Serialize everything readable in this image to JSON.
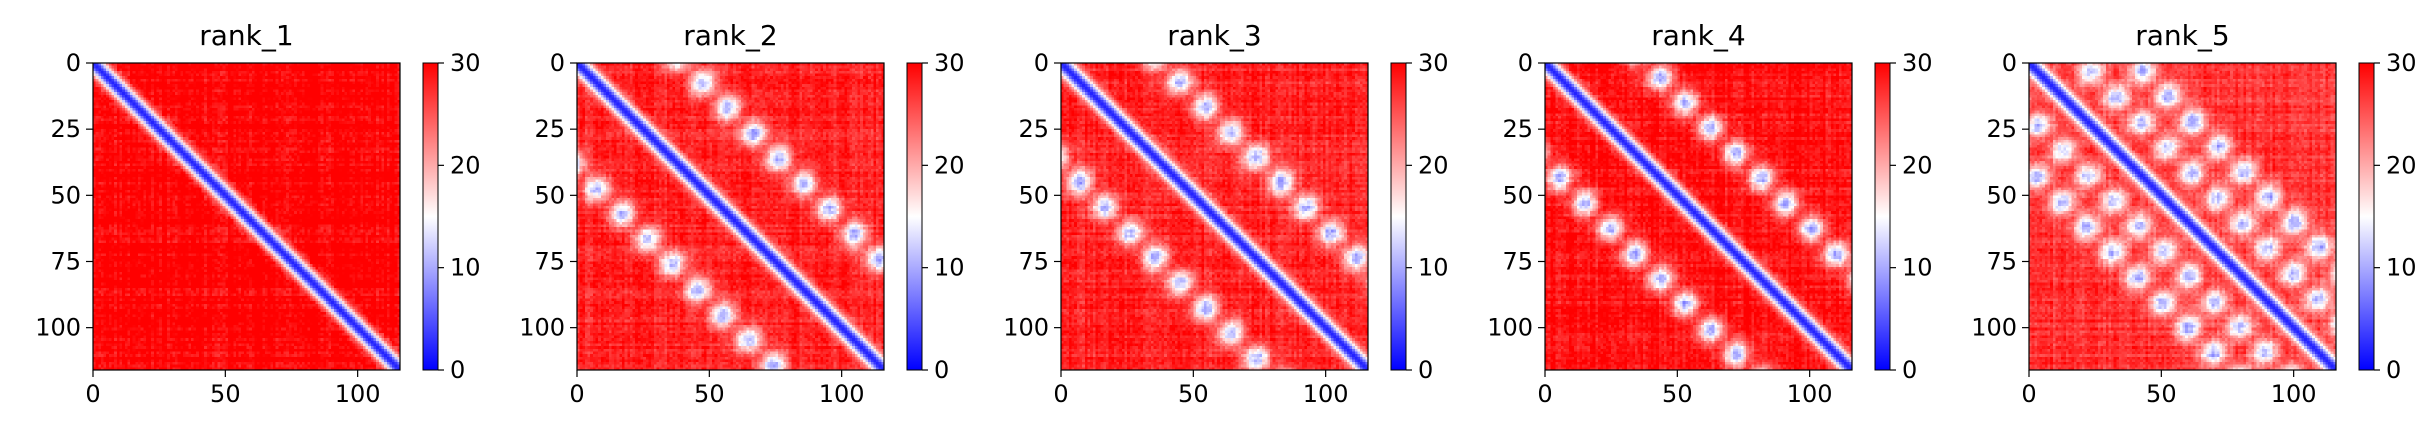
{
  "chart_data": [
    {
      "type": "heatmap",
      "title": "rank_1",
      "size": 116,
      "xticks": [
        0,
        50,
        100
      ],
      "yticks": [
        0,
        25,
        50,
        75,
        100
      ],
      "xlim": [
        0,
        116
      ],
      "ylim": [
        116,
        0
      ],
      "colorbar": {
        "ticks": [
          0,
          10,
          20,
          30
        ],
        "vmin": 0,
        "vmax": 30,
        "colormap": "bwr"
      },
      "pattern": {
        "diagonal_value": 2,
        "far_value": 30,
        "off_diagonal_bands": []
      }
    },
    {
      "type": "heatmap",
      "title": "rank_2",
      "size": 116,
      "xticks": [
        0,
        50,
        100
      ],
      "yticks": [
        0,
        25,
        50,
        75,
        100
      ],
      "xlim": [
        0,
        116
      ],
      "ylim": [
        116,
        0
      ],
      "colorbar": {
        "ticks": [
          0,
          10,
          20,
          30
        ],
        "vmin": 0,
        "vmax": 30,
        "colormap": "bwr"
      },
      "pattern": {
        "diagonal_value": 2,
        "far_value": 28,
        "off_diagonal_bands": [
          [
            40,
            18
          ]
        ]
      }
    },
    {
      "type": "heatmap",
      "title": "rank_3",
      "size": 116,
      "xticks": [
        0,
        50,
        100
      ],
      "yticks": [
        0,
        25,
        50,
        75,
        100
      ],
      "xlim": [
        0,
        116
      ],
      "ylim": [
        116,
        0
      ],
      "colorbar": {
        "ticks": [
          0,
          10,
          20,
          30
        ],
        "vmin": 0,
        "vmax": 30,
        "colormap": "bwr"
      },
      "pattern": {
        "diagonal_value": 2,
        "far_value": 28,
        "off_diagonal_bands": [
          [
            38,
            18
          ]
        ]
      }
    },
    {
      "type": "heatmap",
      "title": "rank_4",
      "size": 116,
      "xticks": [
        0,
        50,
        100
      ],
      "yticks": [
        0,
        25,
        50,
        75,
        100
      ],
      "xlim": [
        0,
        116
      ],
      "ylim": [
        116,
        0
      ],
      "colorbar": {
        "ticks": [
          0,
          10,
          20,
          30
        ],
        "vmin": 0,
        "vmax": 30,
        "colormap": "bwr"
      },
      "pattern": {
        "diagonal_value": 2,
        "far_value": 29,
        "off_diagonal_bands": [
          [
            38,
            19
          ]
        ]
      }
    },
    {
      "type": "heatmap",
      "title": "rank_5",
      "size": 116,
      "xticks": [
        0,
        50,
        100
      ],
      "yticks": [
        0,
        25,
        50,
        75,
        100
      ],
      "xlim": [
        0,
        116
      ],
      "ylim": [
        116,
        0
      ],
      "colorbar": {
        "ticks": [
          0,
          10,
          20,
          30
        ],
        "vmin": 0,
        "vmax": 30,
        "colormap": "bwr"
      },
      "pattern": {
        "diagonal_value": 2,
        "far_value": 27,
        "off_diagonal_bands": [
          [
            20,
            16
          ],
          [
            40,
            17
          ]
        ]
      }
    }
  ]
}
